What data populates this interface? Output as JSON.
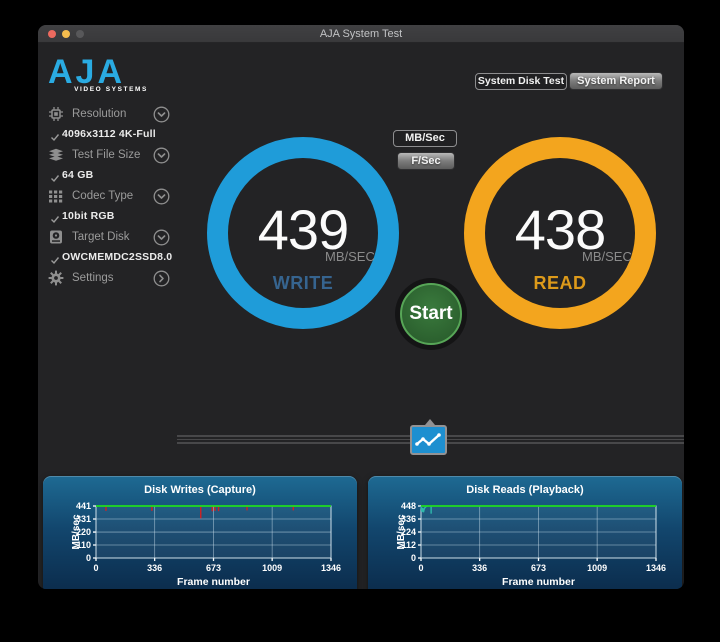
{
  "window": {
    "title": "AJA System Test",
    "traffic_lights": [
      {
        "name": "close",
        "color": "#ed6a5f"
      },
      {
        "name": "minimize",
        "color": "#f5bd4e"
      },
      {
        "name": "zoom",
        "color": "#58585a"
      }
    ]
  },
  "logo": {
    "brand": "AJA",
    "tagline": "VIDEO SYSTEMS",
    "color": "#2aabe2"
  },
  "header_buttons": {
    "disk_test": "System Disk Test",
    "report": "System Report"
  },
  "sidebar": {
    "check_glyph": "checkmark",
    "items": [
      {
        "label": "Resolution",
        "icon": "chip-icon",
        "value": "4096x3112 4K-Full",
        "chevron": "down"
      },
      {
        "label": "Test File Size",
        "icon": "layers-icon",
        "value": "64 GB",
        "chevron": "down"
      },
      {
        "label": "Codec Type",
        "icon": "codec-grid-icon",
        "value": "10bit RGB",
        "chevron": "down"
      },
      {
        "label": "Target Disk",
        "icon": "disk-icon",
        "value": "OWCMEMDC2SSD8.0",
        "chevron": "down"
      },
      {
        "label": "Settings",
        "icon": "gear-icon",
        "value": "",
        "chevron": "right"
      }
    ]
  },
  "unit_buttons": {
    "options": [
      {
        "label": "MB/Sec"
      },
      {
        "label": "F/Sec"
      }
    ]
  },
  "gauges": {
    "write": {
      "value": "439",
      "unit": "MB/SEC",
      "label": "WRITE",
      "ring_color": "#1f9cd9",
      "label_color": "#36648f"
    },
    "read": {
      "value": "438",
      "unit": "MB/SEC",
      "label": "READ",
      "ring_color": "#f3a51e",
      "label_color": "#dd9a1a"
    }
  },
  "start_button": {
    "label": "Start",
    "fill_color": "#2e6a31",
    "ring_color": "#57a657"
  },
  "chart_icon": {
    "name": "line-chart-icon",
    "color": "#1d8fd0"
  },
  "chart_data": [
    {
      "type": "line",
      "title": "Disk Writes (Capture)",
      "xlabel": "Frame number",
      "ylabel": "MB/sec",
      "xlim": [
        0,
        1346
      ],
      "ylim": [
        0,
        441
      ],
      "xticks": [
        0,
        336,
        673,
        1009,
        1346
      ],
      "yticks": [
        0,
        110,
        220,
        331,
        441
      ],
      "grid": true,
      "legend": "none",
      "series": [
        {
          "name": "write rate",
          "type": "baseline",
          "color": "#1fdd1f",
          "value": 441
        },
        {
          "name": "write drop spikes",
          "type": "vspikes",
          "color": "#d42020",
          "spikes": [
            {
              "x": 57,
              "v": 400
            },
            {
              "x": 320,
              "v": 400
            },
            {
              "x": 600,
              "v": 336
            },
            {
              "x": 666,
              "v": 396
            },
            {
              "x": 681,
              "v": 400
            },
            {
              "x": 702,
              "v": 397
            },
            {
              "x": 865,
              "v": 404
            },
            {
              "x": 1130,
              "v": 404
            }
          ]
        }
      ]
    },
    {
      "type": "line",
      "title": "Disk Reads (Playback)",
      "xlabel": "Frame number",
      "ylabel": "MB/sec",
      "xlim": [
        0,
        1346
      ],
      "ylim": [
        0,
        448
      ],
      "xticks": [
        0,
        336,
        673,
        1009,
        1346
      ],
      "yticks": [
        0,
        112,
        224,
        336,
        448
      ],
      "grid": true,
      "legend": "none",
      "series": [
        {
          "name": "read rate",
          "type": "baseline",
          "color": "#1fdd1f",
          "value": 448
        },
        {
          "name": "startup dips",
          "type": "polyline",
          "color": "#2fb9ac",
          "points": [
            [
              0,
              448
            ],
            [
              5,
              398
            ],
            [
              9,
              432
            ],
            [
              14,
              394
            ],
            [
              19,
              426
            ],
            [
              27,
              442
            ],
            [
              38,
              448
            ]
          ]
        },
        {
          "name": "startup dip spike",
          "type": "vspikes",
          "color": "#2fb9ac",
          "spikes": [
            {
              "x": 58,
              "v": 382
            }
          ]
        }
      ]
    }
  ]
}
